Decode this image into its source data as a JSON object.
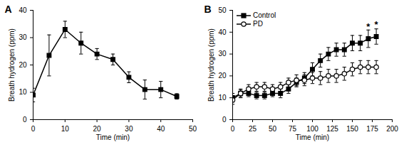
{
  "chart_data": [
    {
      "type": "line",
      "title": "A",
      "x_label": "Time (min)",
      "y_label": "Breath hydrogen (ppm)",
      "x": [
        0,
        5,
        10,
        15,
        20,
        25,
        30,
        35,
        40,
        45
      ],
      "xlim": [
        0,
        50
      ],
      "xticks": [
        0,
        10,
        20,
        30,
        40,
        50
      ],
      "ylim": [
        0,
        40
      ],
      "yticks": [
        0,
        10,
        20,
        30,
        40
      ],
      "series": [
        {
          "color": "#000000",
          "marker": "square",
          "values": [
            9,
            23.5,
            33,
            28,
            24,
            22,
            15.5,
            11,
            11,
            8.5
          ],
          "errors": [
            2.5,
            7.5,
            3,
            4,
            2,
            2,
            2,
            3.5,
            3,
            1
          ]
        }
      ]
    },
    {
      "type": "line",
      "title": "B",
      "x_label": "Time (min)",
      "y_label": "Breath hydrogen (ppm)",
      "x": [
        0,
        10,
        20,
        30,
        40,
        50,
        60,
        70,
        80,
        90,
        100,
        110,
        120,
        130,
        140,
        150,
        160,
        170,
        180
      ],
      "xlim": [
        0,
        200
      ],
      "xticks": [
        0,
        25,
        50,
        75,
        100,
        125,
        150,
        175,
        200
      ],
      "ylim": [
        0,
        50
      ],
      "yticks": [
        0,
        10,
        20,
        30,
        40,
        50
      ],
      "legend": "top-left",
      "series": [
        {
          "name": "Control",
          "color": "#000000",
          "marker": "square",
          "values": [
            10,
            12,
            12,
            11,
            11,
            12,
            12,
            14,
            17,
            19,
            23,
            27,
            30,
            32,
            32,
            35,
            35,
            37,
            38
          ],
          "errors": [
            2,
            1.5,
            1.5,
            1.5,
            1.5,
            1.5,
            2,
            2,
            2,
            2.5,
            3,
            3,
            3,
            3,
            3,
            3.5,
            3.5,
            4,
            3.5
          ]
        },
        {
          "name": "PD",
          "color": "#000000",
          "marker": "circle_open",
          "values": [
            9,
            12,
            14,
            15,
            15,
            14,
            15,
            17,
            18,
            18,
            19,
            19,
            20,
            20,
            21,
            23,
            24,
            24,
            24
          ],
          "errors": [
            2,
            2,
            2,
            2,
            2,
            2,
            2,
            2,
            2.5,
            2.5,
            2.5,
            3,
            3,
            3,
            3,
            3,
            3,
            3,
            3
          ]
        }
      ],
      "annotations": [
        {
          "x": 170,
          "y": 42.5,
          "text": "*"
        },
        {
          "x": 180,
          "y": 43.5,
          "text": "*"
        }
      ]
    }
  ]
}
